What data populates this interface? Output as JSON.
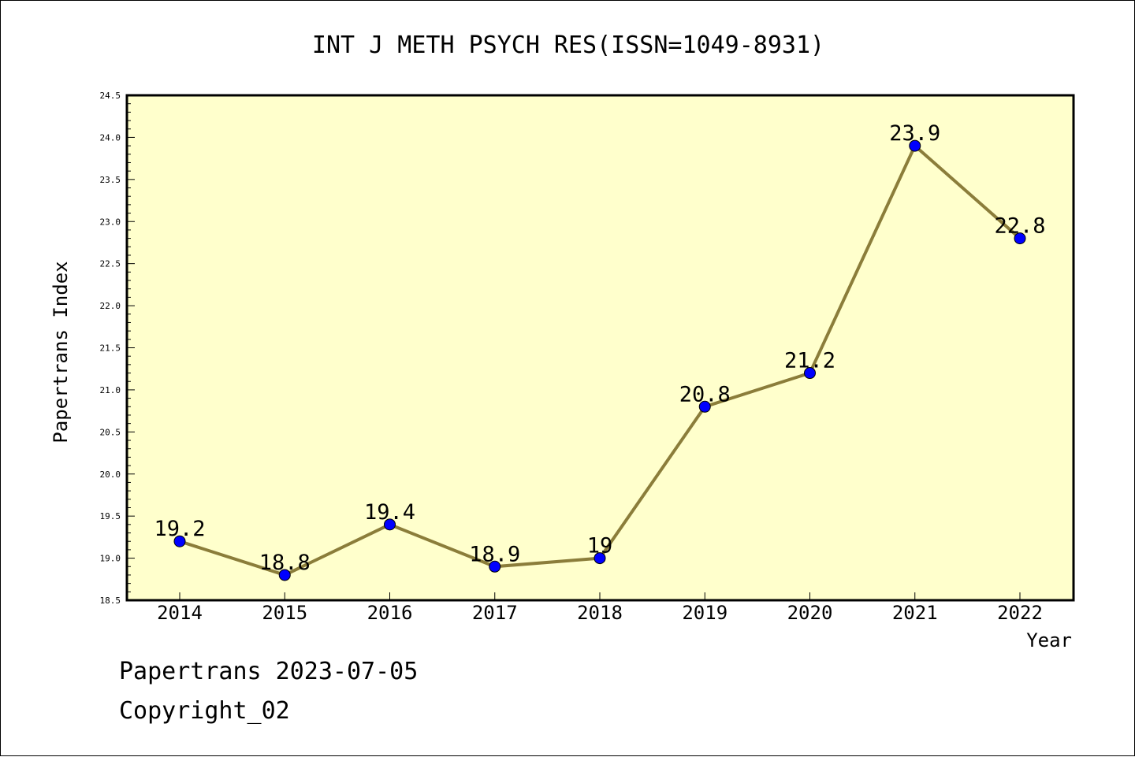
{
  "chart_data": {
    "type": "line",
    "title": "INT J METH PSYCH RES(ISSN=1049-8931)",
    "xlabel": "Year",
    "ylabel": "Papertrans Index",
    "categories": [
      "2014",
      "2015",
      "2016",
      "2017",
      "2018",
      "2019",
      "2020",
      "2021",
      "2022"
    ],
    "series": [
      {
        "values": [
          19.2,
          18.8,
          19.4,
          18.9,
          19.0,
          20.8,
          21.2,
          23.9,
          22.8
        ],
        "labels": [
          "19.2",
          "18.8",
          "19.4",
          "18.9",
          "19",
          "20.8",
          "21.2",
          "23.9",
          "22.8"
        ]
      }
    ],
    "ylim": [
      18.5,
      24.5
    ],
    "yticks": [
      "18.5",
      "19.0",
      "19.5",
      "20.0",
      "20.5",
      "21.0",
      "21.5",
      "22.0",
      "22.5",
      "23.0",
      "23.5",
      "24.0",
      "24.5"
    ],
    "colors": {
      "plot_background": "#ffffcc",
      "line": "#8b7d3a",
      "marker": "#0000ff"
    },
    "grid": false,
    "legend": "none"
  },
  "footer": {
    "line1": "Papertrans 2023-07-05",
    "line2": "Copyright_02"
  }
}
